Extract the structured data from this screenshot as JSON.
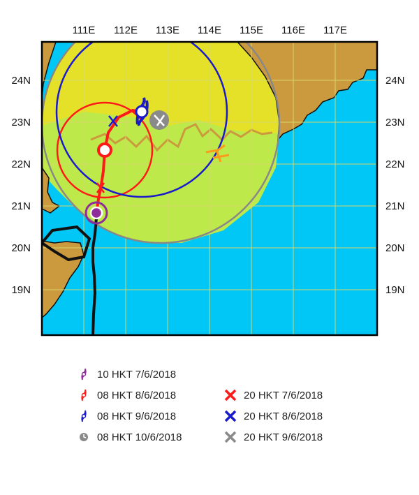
{
  "map": {
    "lon_labels": [
      "111E",
      "112E",
      "113E",
      "114E",
      "115E",
      "116E",
      "117E"
    ],
    "lat_labels": [
      "24N",
      "23N",
      "22N",
      "21N",
      "20N",
      "19N"
    ],
    "colors": {
      "sea": "#00c7f5",
      "land": "#cc9a3e",
      "grid": "#d6d66a",
      "border": "#000000",
      "signal_circle": "#f0e31c",
      "overlap_green": "#bdea4a",
      "circle_edge": "#888888",
      "track_red": "#ff1a1a",
      "track_black": "#111111",
      "circle_red": "#ff1a1a",
      "circle_blue": "#1a1acc",
      "purple": "#8e2c9a",
      "grey": "#8a8a8a",
      "orange": "#ff9a1a"
    }
  },
  "legend": {
    "items_left": [
      {
        "label": "10 HKT 7/6/2018",
        "icon": "cyclone-symbol-icon",
        "color": "#8e2c9a"
      },
      {
        "label": "08 HKT 8/6/2018",
        "icon": "cyclone-symbol-icon",
        "color": "#ff1a1a"
      },
      {
        "label": "08 HKT 9/6/2018",
        "icon": "cyclone-symbol-icon",
        "color": "#1a1acc"
      },
      {
        "label": "08 HKT 10/6/2018",
        "icon": "low-pressure-symbol-icon",
        "color": "#8a8a8a"
      }
    ],
    "items_right": [
      {
        "label": "20 HKT 7/6/2018",
        "icon": "cross-marker-icon",
        "color": "#ff1a1a"
      },
      {
        "label": "20 HKT 8/6/2018",
        "icon": "cross-marker-icon",
        "color": "#1a1acc"
      },
      {
        "label": "20 HKT 9/6/2018",
        "icon": "cross-marker-icon",
        "color": "#8a8a8a"
      }
    ]
  }
}
